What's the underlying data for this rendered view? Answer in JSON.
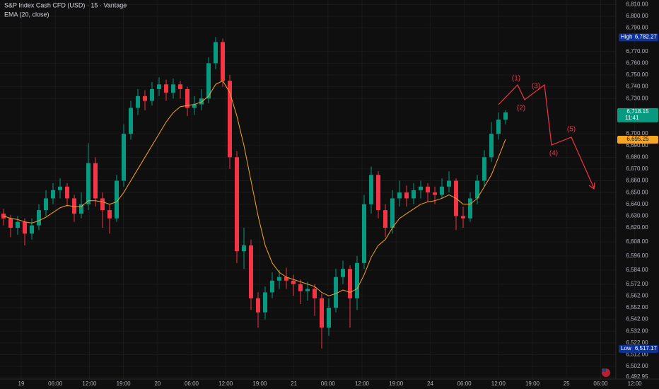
{
  "chart_data": {
    "type": "candlestick",
    "title": "S&P Index Cash CFD (USD) · 15 · Vantage",
    "up_color": "#089981",
    "down_color": "#f23645",
    "open": [
      6632,
      6628,
      6620,
      6625,
      6615,
      6622,
      6635,
      6645,
      6652,
      6655,
      6645,
      6632,
      6640,
      6675,
      6645,
      6635,
      6628,
      6660,
      6700,
      6722,
      6732,
      6728,
      6738,
      6742,
      6735,
      6742,
      6738,
      6722,
      6725,
      6730,
      6760,
      6778,
      6745,
      6680,
      6600,
      6605,
      6560,
      6548,
      6565,
      6575,
      6578,
      6575,
      6572,
      6566,
      6568,
      6560,
      6535,
      6552,
      6578,
      6585,
      6560,
      6590,
      6640,
      6665,
      6635,
      6620,
      6645,
      6650,
      6645,
      6652,
      6655,
      6650,
      6648,
      6655,
      6660,
      6630,
      6628,
      6645,
      6660,
      6680,
      6700,
      6712
    ],
    "high": [
      6636,
      6631,
      6630,
      6628,
      6628,
      6640,
      6652,
      6658,
      6662,
      6658,
      6648,
      6650,
      6692,
      6680,
      6650,
      6640,
      6665,
      6708,
      6728,
      6738,
      6737,
      6744,
      6748,
      6746,
      6747,
      6745,
      6740,
      6732,
      6738,
      6765,
      6782.27,
      6781,
      6750,
      6685,
      6620,
      6610,
      6565,
      6570,
      6582,
      6584,
      6586,
      6580,
      6576,
      6574,
      6572,
      6564,
      6560,
      6585,
      6592,
      6588,
      6596,
      6648,
      6672,
      6668,
      6640,
      6652,
      6660,
      6656,
      6658,
      6660,
      6658,
      6655,
      6662,
      6668,
      6662,
      6638,
      6650,
      6665,
      6686,
      6710,
      6718,
      6720
    ],
    "low": [
      6622,
      6612,
      6614,
      6605,
      6610,
      6618,
      6630,
      6640,
      6645,
      6638,
      6625,
      6628,
      6635,
      6638,
      6620,
      6615,
      6625,
      6655,
      6695,
      6716,
      6720,
      6724,
      6732,
      6728,
      6730,
      6730,
      6715,
      6716,
      6720,
      6726,
      6755,
      6740,
      6670,
      6590,
      6585,
      6550,
      6535,
      6542,
      6560,
      6568,
      6568,
      6562,
      6555,
      6558,
      6545,
      6517.17,
      6528,
      6548,
      6572,
      6535,
      6550,
      6585,
      6632,
      6628,
      6612,
      6615,
      6638,
      6638,
      6640,
      6645,
      6642,
      6640,
      6645,
      6650,
      6618,
      6620,
      6625,
      6640,
      6655,
      6676,
      6695,
      6708
    ],
    "close": [
      6628,
      6620,
      6625,
      6615,
      6622,
      6635,
      6645,
      6652,
      6655,
      6645,
      6632,
      6640,
      6675,
      6645,
      6635,
      6628,
      6660,
      6700,
      6722,
      6732,
      6728,
      6738,
      6742,
      6735,
      6742,
      6738,
      6722,
      6725,
      6730,
      6760,
      6778,
      6745,
      6680,
      6600,
      6605,
      6560,
      6548,
      6565,
      6575,
      6578,
      6575,
      6572,
      6566,
      6568,
      6560,
      6535,
      6552,
      6578,
      6585,
      6560,
      6590,
      6640,
      6665,
      6635,
      6620,
      6645,
      6650,
      6645,
      6652,
      6655,
      6650,
      6648,
      6655,
      6660,
      6630,
      6628,
      6645,
      6660,
      6680,
      6700,
      6712,
      6718.15
    ],
    "ema": {
      "name": "EMA (20, close)",
      "color": "#f5a623",
      "values": [
        6630,
        6628,
        6627,
        6625,
        6624,
        6626,
        6629,
        6633,
        6637,
        6639,
        6638,
        6638,
        6643,
        6643,
        6642,
        6640,
        6642,
        6650,
        6660,
        6670,
        6680,
        6690,
        6700,
        6710,
        6718,
        6723,
        6724,
        6725,
        6727,
        6732,
        6742,
        6745,
        6735,
        6715,
        6690,
        6660,
        6630,
        6605,
        6590,
        6582,
        6578,
        6576,
        6574,
        6572,
        6570,
        6565,
        6562,
        6564,
        6567,
        6565,
        6568,
        6580,
        6595,
        6605,
        6610,
        6620,
        6628,
        6632,
        6636,
        6640,
        6642,
        6643,
        6645,
        6648,
        6645,
        6640,
        6640,
        6645,
        6655,
        6665,
        6680,
        6695.25
      ],
      "last_label": "6,695.25"
    },
    "close_label": "6,718.15",
    "countdown": "11:41",
    "high_marker": {
      "text": "High",
      "value": 6782.27,
      "label": "6,782.27"
    },
    "low_marker": {
      "text": "Low",
      "value": 6517.17,
      "label": "6,517.17"
    },
    "ylim": [
      6490,
      6812
    ],
    "yticks": [
      {
        "value": 6810,
        "label": "6,810.00"
      },
      {
        "value": 6800,
        "label": "6,800.00"
      },
      {
        "value": 6790,
        "label": "6,790.00"
      },
      {
        "value": 6770,
        "label": "6,770.00"
      },
      {
        "value": 6760,
        "label": "6,760.00"
      },
      {
        "value": 6750,
        "label": "6,750.00"
      },
      {
        "value": 6740,
        "label": "6,740.00"
      },
      {
        "value": 6730,
        "label": "6,730.00"
      },
      {
        "value": 6700,
        "label": "6,700.00"
      },
      {
        "value": 6690,
        "label": "6,690.00"
      },
      {
        "value": 6680,
        "label": "6,680.00"
      },
      {
        "value": 6670,
        "label": "6,670.00"
      },
      {
        "value": 6660,
        "label": "6,660.00"
      },
      {
        "value": 6650,
        "label": "6,650.00"
      },
      {
        "value": 6640,
        "label": "6,640.00"
      },
      {
        "value": 6630,
        "label": "6,630.00"
      },
      {
        "value": 6620,
        "label": "6,620.00"
      },
      {
        "value": 6608,
        "label": "6,608.00"
      },
      {
        "value": 6596,
        "label": "6,596.00"
      },
      {
        "value": 6584,
        "label": "6,584.00"
      },
      {
        "value": 6572,
        "label": "6,572.00"
      },
      {
        "value": 6562,
        "label": "6,562.00"
      },
      {
        "value": 6552,
        "label": "6,552.00"
      },
      {
        "value": 6542,
        "label": "6,542.00"
      },
      {
        "value": 6532,
        "label": "6,532.00"
      },
      {
        "value": 6522,
        "label": "6,522.00"
      },
      {
        "value": 6512,
        "label": "6,512.00"
      },
      {
        "value": 6502,
        "label": "6,502.00"
      },
      {
        "value": 6492.95,
        "label": "6,492.95"
      }
    ],
    "x_labels": [
      "19",
      "06:00",
      "12:00",
      "19:00",
      "20",
      "06:00",
      "12:00",
      "19:00",
      "21",
      "06:00",
      "12:00",
      "19:00",
      "24",
      "06:00",
      "12:00",
      "19:00",
      "25",
      "06:00",
      "12:00"
    ],
    "annotations": [
      "(1)",
      "(2)",
      "(3)",
      "(4)",
      "(5)"
    ],
    "grid": true
  }
}
